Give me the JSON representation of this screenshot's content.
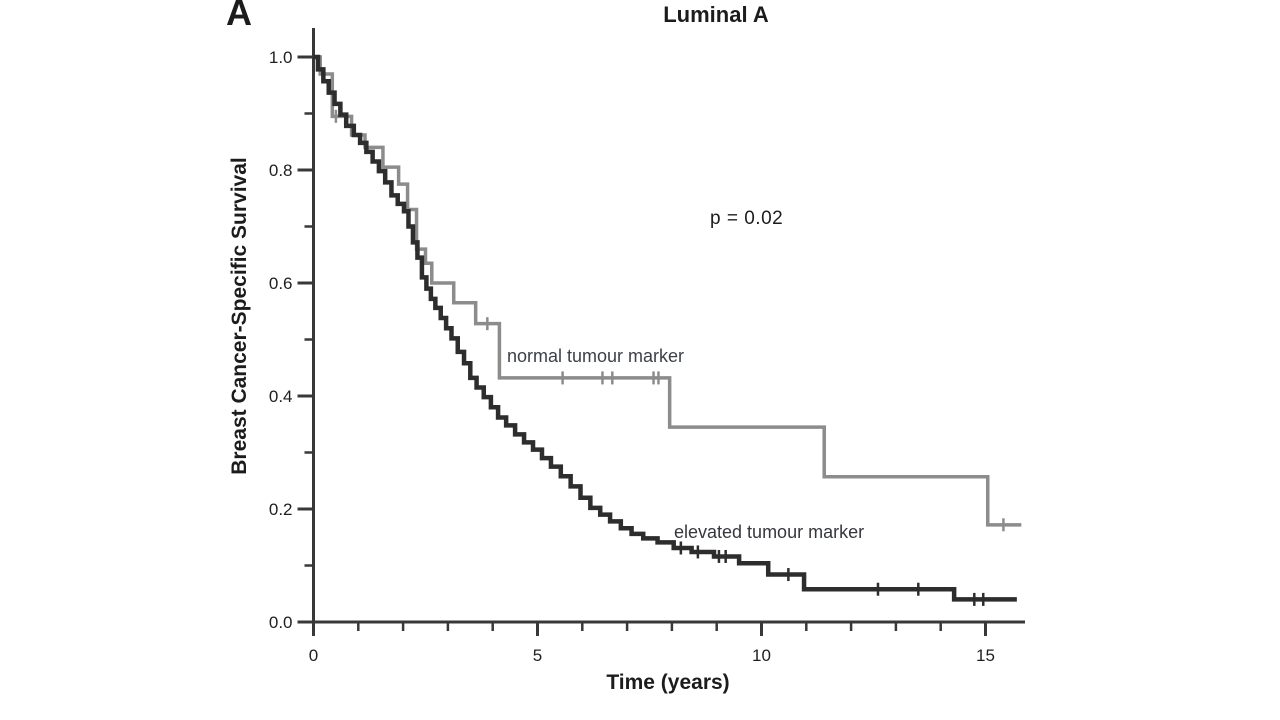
{
  "figure": {
    "panel_label": "A"
  },
  "chart_data": {
    "type": "line",
    "subtype": "kaplan-meier-step",
    "title": "Luminal A",
    "xlabel": "Time (years)",
    "ylabel": "Breast Cancer-Specific Survival",
    "p_value_text": "p = 0.02",
    "xlim": [
      0,
      15.9
    ],
    "ylim": [
      0.0,
      1.0
    ],
    "grid": "off",
    "legend": "inline-labels",
    "axis_color": "#383838",
    "text_color": "#1f1f1f",
    "x_ticks": [
      {
        "v": 0,
        "label": "0"
      },
      {
        "v": 5,
        "label": "5"
      },
      {
        "v": 10,
        "label": "10"
      },
      {
        "v": 15,
        "label": "15"
      }
    ],
    "x_minor_ticks": [
      1,
      2,
      3,
      4,
      6,
      7,
      8,
      9,
      11,
      12,
      13,
      14
    ],
    "y_ticks": [
      {
        "v": 0.0,
        "label": "0.0"
      },
      {
        "v": 0.2,
        "label": "0.2"
      },
      {
        "v": 0.4,
        "label": "0.4"
      },
      {
        "v": 0.6,
        "label": "0.6"
      },
      {
        "v": 0.8,
        "label": "0.8"
      },
      {
        "v": 1.0,
        "label": "1.0"
      }
    ],
    "y_minor_ticks": [
      0.1,
      0.3,
      0.5,
      0.7,
      0.9
    ],
    "series": [
      {
        "id": "normal-tumour-marker",
        "name": "normal tumour marker",
        "color": "#8c8c8c",
        "width": 3.5,
        "steps": [
          [
            0,
            1.0
          ],
          [
            0.15,
            0.97
          ],
          [
            0.42,
            0.895
          ],
          [
            0.85,
            0.862
          ],
          [
            1.15,
            0.84
          ],
          [
            1.55,
            0.805
          ],
          [
            1.9,
            0.775
          ],
          [
            2.1,
            0.73
          ],
          [
            2.3,
            0.66
          ],
          [
            2.5,
            0.635
          ],
          [
            2.64,
            0.6
          ],
          [
            3.13,
            0.565
          ],
          [
            3.62,
            0.528
          ],
          [
            4.15,
            0.432
          ],
          [
            7.95,
            0.345
          ],
          [
            11.4,
            0.257
          ],
          [
            15.05,
            0.172
          ],
          [
            15.8,
            0.172
          ]
        ],
        "censors": [
          [
            0.5,
            0.895
          ],
          [
            3.88,
            0.528
          ],
          [
            5.56,
            0.432
          ],
          [
            6.45,
            0.432
          ],
          [
            6.67,
            0.432
          ],
          [
            7.59,
            0.432
          ],
          [
            7.7,
            0.432
          ],
          [
            15.4,
            0.172
          ]
        ]
      },
      {
        "id": "elevated-tumour-marker",
        "name": "elevated tumour marker",
        "color": "#2d2d2d",
        "width": 4.5,
        "steps": [
          [
            0,
            1.0
          ],
          [
            0.1,
            0.978
          ],
          [
            0.22,
            0.957
          ],
          [
            0.34,
            0.937
          ],
          [
            0.47,
            0.917
          ],
          [
            0.6,
            0.898
          ],
          [
            0.73,
            0.878
          ],
          [
            0.9,
            0.862
          ],
          [
            1.04,
            0.848
          ],
          [
            1.18,
            0.832
          ],
          [
            1.32,
            0.815
          ],
          [
            1.46,
            0.798
          ],
          [
            1.6,
            0.778
          ],
          [
            1.74,
            0.755
          ],
          [
            1.88,
            0.74
          ],
          [
            2.02,
            0.727
          ],
          [
            2.12,
            0.7
          ],
          [
            2.22,
            0.672
          ],
          [
            2.32,
            0.645
          ],
          [
            2.42,
            0.61
          ],
          [
            2.52,
            0.59
          ],
          [
            2.62,
            0.572
          ],
          [
            2.72,
            0.556
          ],
          [
            2.84,
            0.538
          ],
          [
            2.96,
            0.52
          ],
          [
            3.08,
            0.502
          ],
          [
            3.22,
            0.478
          ],
          [
            3.36,
            0.458
          ],
          [
            3.5,
            0.432
          ],
          [
            3.64,
            0.415
          ],
          [
            3.8,
            0.398
          ],
          [
            3.96,
            0.38
          ],
          [
            4.12,
            0.362
          ],
          [
            4.3,
            0.348
          ],
          [
            4.5,
            0.332
          ],
          [
            4.7,
            0.318
          ],
          [
            4.9,
            0.305
          ],
          [
            5.1,
            0.29
          ],
          [
            5.3,
            0.275
          ],
          [
            5.52,
            0.258
          ],
          [
            5.74,
            0.24
          ],
          [
            5.96,
            0.22
          ],
          [
            6.18,
            0.202
          ],
          [
            6.4,
            0.19
          ],
          [
            6.62,
            0.178
          ],
          [
            6.86,
            0.166
          ],
          [
            7.1,
            0.156
          ],
          [
            7.36,
            0.148
          ],
          [
            7.68,
            0.141
          ],
          [
            8.04,
            0.131
          ],
          [
            8.44,
            0.124
          ],
          [
            8.94,
            0.116
          ],
          [
            9.5,
            0.104
          ],
          [
            10.15,
            0.084
          ],
          [
            10.95,
            0.058
          ],
          [
            14.3,
            0.04
          ],
          [
            15.7,
            0.04
          ]
        ],
        "censors": [
          [
            8.2,
            0.131
          ],
          [
            8.58,
            0.124
          ],
          [
            9.05,
            0.116
          ],
          [
            9.2,
            0.116
          ],
          [
            10.6,
            0.084
          ],
          [
            12.6,
            0.058
          ],
          [
            13.5,
            0.058
          ],
          [
            14.75,
            0.04
          ],
          [
            14.95,
            0.04
          ]
        ]
      }
    ]
  }
}
